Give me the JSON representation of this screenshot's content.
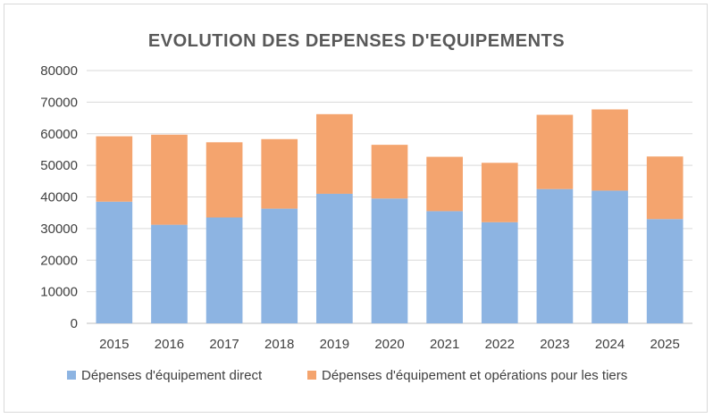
{
  "chart_data": {
    "type": "bar",
    "stacked": true,
    "title": "EVOLUTION DES DEPENSES D'EQUIPEMENTS",
    "xlabel": "",
    "ylabel": "",
    "categories": [
      "2015",
      "2016",
      "2017",
      "2018",
      "2019",
      "2020",
      "2021",
      "2022",
      "2023",
      "2024",
      "2025"
    ],
    "series": [
      {
        "name": "Dépenses d'équipement direct",
        "color": "#8db4e2",
        "values": [
          38500,
          31200,
          33500,
          36300,
          41000,
          39500,
          35500,
          32000,
          42500,
          42000,
          33000
        ]
      },
      {
        "name": "Dépenses d'équipement et opérations pour les tiers",
        "color": "#f4a46e",
        "values": [
          20700,
          28500,
          23800,
          22000,
          25200,
          17000,
          17200,
          18800,
          23500,
          25700,
          19800
        ]
      }
    ],
    "ylim": [
      0,
      80000
    ],
    "yticks": [
      0,
      10000,
      20000,
      30000,
      40000,
      50000,
      60000,
      70000,
      80000
    ],
    "grid": true,
    "legend": "bottom"
  }
}
